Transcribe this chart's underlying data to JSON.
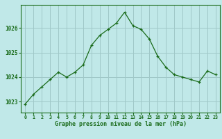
{
  "x": [
    0,
    1,
    2,
    3,
    4,
    5,
    6,
    7,
    8,
    9,
    10,
    11,
    12,
    13,
    14,
    15,
    16,
    17,
    18,
    19,
    20,
    21,
    22,
    23
  ],
  "y": [
    1022.9,
    1023.3,
    1023.6,
    1023.9,
    1024.2,
    1024.0,
    1024.2,
    1024.5,
    1025.3,
    1025.7,
    1025.95,
    1026.2,
    1026.65,
    1026.1,
    1025.95,
    1025.55,
    1024.85,
    1024.4,
    1024.1,
    1024.0,
    1023.9,
    1023.8,
    1024.25,
    1024.1
  ],
  "line_color": "#1a6b1a",
  "marker_color": "#1a6b1a",
  "bg_color": "#c0e8e8",
  "grid_color": "#a0c8c8",
  "border_color": "#1a6b1a",
  "xlabel": "Graphe pression niveau de la mer (hPa)",
  "xlabel_color": "#1a6b1a",
  "tick_color": "#1a6b1a",
  "yticks": [
    1023,
    1024,
    1025,
    1026
  ],
  "xticks": [
    0,
    1,
    2,
    3,
    4,
    5,
    6,
    7,
    8,
    9,
    10,
    11,
    12,
    13,
    14,
    15,
    16,
    17,
    18,
    19,
    20,
    21,
    22,
    23
  ],
  "ylim": [
    1022.55,
    1026.95
  ],
  "xlim": [
    -0.5,
    23.5
  ]
}
